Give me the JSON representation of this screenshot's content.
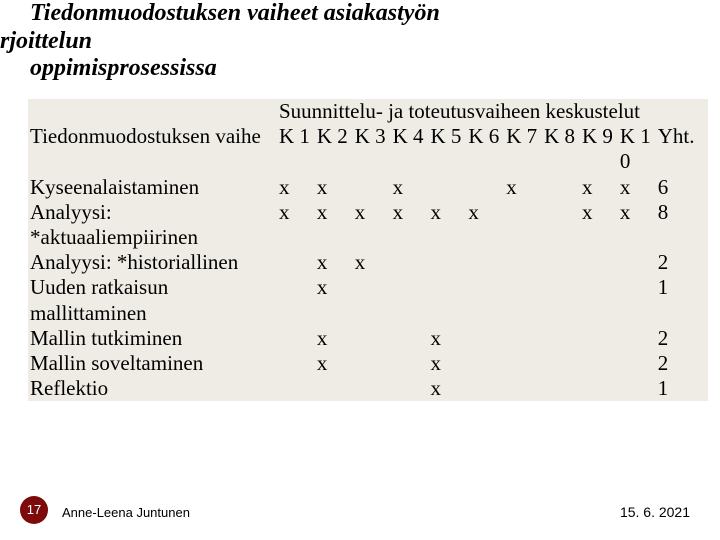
{
  "title_lines": {
    "l1": "Tiedonmuodostuksen vaiheet asiakastyön",
    "l2": "rjoittelun",
    "l3": "oppimisprosessissa"
  },
  "table": {
    "super_header": "Suunnittelu- ja toteutusvaiheen keskustelut",
    "columns": {
      "label": "Tiedonmuodostuksen vaihe",
      "k1": "K 1",
      "k2": "K 2",
      "k3": "K 3",
      "k4": "K 4",
      "k5": "K 5",
      "k6": "K 6",
      "k7": "K 7",
      "k8": "K 8",
      "k9": "K 9",
      "k10a": "K 1",
      "k10b": "0",
      "yht": "Yht."
    },
    "rows": [
      {
        "label": "Kyseenalaistaminen",
        "k1": "x",
        "k2": "x",
        "k3": "",
        "k4": "x",
        "k5": "",
        "k6": "",
        "k7": "x",
        "k8": "",
        "k9": "x",
        "k10": "x",
        "yht": "6"
      },
      {
        "label": "Analyysi: *aktuaaliempiirinen",
        "k1": "x",
        "k2": "x",
        "k3": "x",
        "k4": "x",
        "k5": "x",
        "k6": "x",
        "k7": "",
        "k8": "",
        "k9": "x",
        "k10": "x",
        "yht": "8"
      },
      {
        "label": "Analyysi: *historiallinen",
        "k1": "",
        "k2": "x",
        "k3": "x",
        "k4": "",
        "k5": "",
        "k6": "",
        "k7": "",
        "k8": "",
        "k9": "",
        "k10": "",
        "yht": "2"
      },
      {
        "label": "Uuden ratkaisun mallittaminen",
        "k1": "",
        "k2": "x",
        "k3": "",
        "k4": "",
        "k5": "",
        "k6": "",
        "k7": "",
        "k8": "",
        "k9": "",
        "k10": "",
        "yht": "1"
      },
      {
        "label": "Mallin tutkiminen",
        "k1": "",
        "k2": "x",
        "k3": "",
        "k4": "",
        "k5": "x",
        "k6": "",
        "k7": "",
        "k8": "",
        "k9": "",
        "k10": "",
        "yht": "2"
      },
      {
        "label": "Mallin soveltaminen",
        "k1": "",
        "k2": "x",
        "k3": "",
        "k4": "",
        "k5": "x",
        "k6": "",
        "k7": "",
        "k8": "",
        "k9": "",
        "k10": "",
        "yht": "2"
      },
      {
        "label": "Reflektio",
        "k1": "",
        "k2": "",
        "k3": "",
        "k4": "",
        "k5": "x",
        "k6": "",
        "k7": "",
        "k8": "",
        "k9": "",
        "k10": "",
        "yht": "1"
      }
    ]
  },
  "footer": {
    "page": "17",
    "author": "Anne-Leena Juntunen",
    "date": "15. 6. 2021"
  },
  "colors": {
    "table_bg": "#eeece4",
    "badge_bg": "#7e0b0b",
    "text": "#000000"
  }
}
